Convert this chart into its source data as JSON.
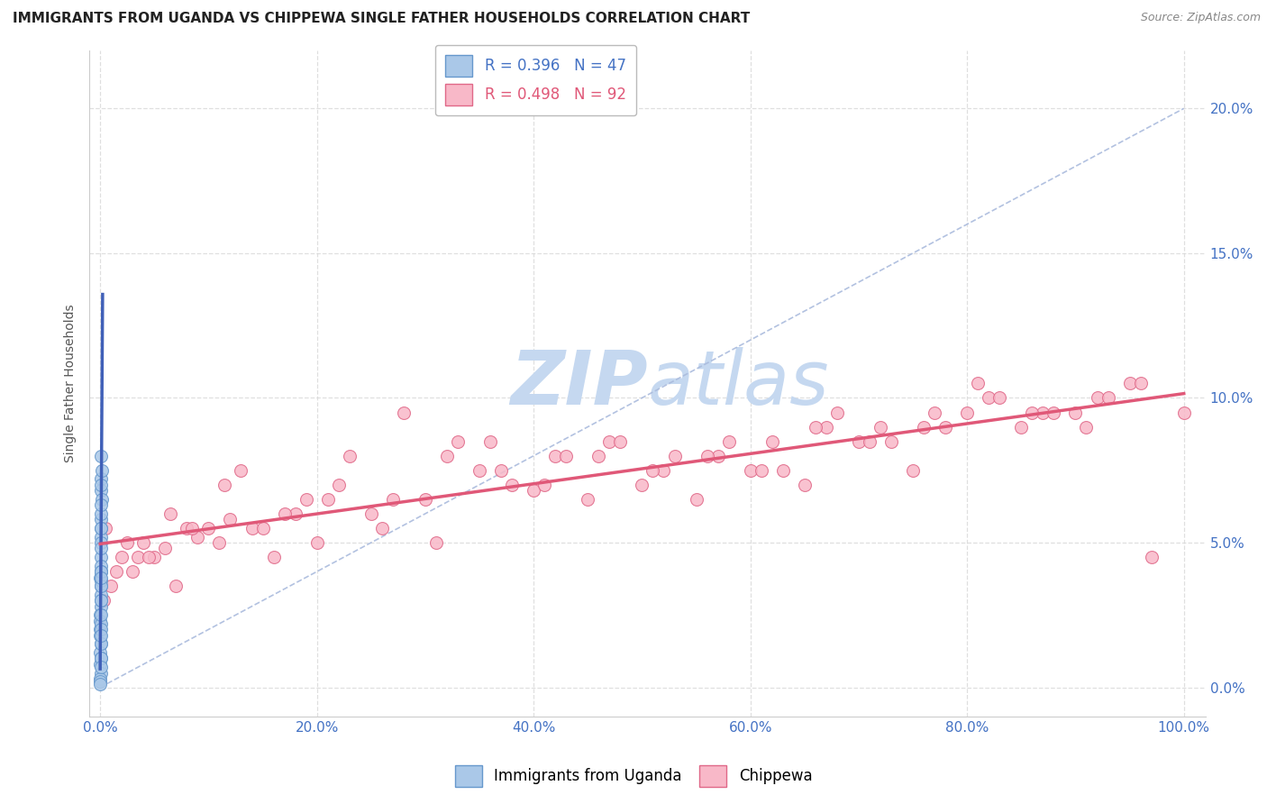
{
  "title": "IMMIGRANTS FROM UGANDA VS CHIPPEWA SINGLE FATHER HOUSEHOLDS CORRELATION CHART",
  "source": "Source: ZipAtlas.com",
  "ylabel": "Single Father Households",
  "x_tick_labels": [
    "0.0%",
    "20.0%",
    "40.0%",
    "60.0%",
    "80.0%",
    "100.0%"
  ],
  "x_tick_values": [
    0,
    20,
    40,
    60,
    80,
    100
  ],
  "y_tick_labels": [
    "0.0%",
    "5.0%",
    "10.0%",
    "15.0%",
    "20.0%"
  ],
  "y_tick_values": [
    0,
    5,
    10,
    15,
    20
  ],
  "xlim": [
    -1,
    102
  ],
  "ylim": [
    -1,
    22
  ],
  "legend_entries": [
    {
      "label": "R = 0.396   N = 47",
      "color": "#a8c4e0"
    },
    {
      "label": "R = 0.498   N = 92",
      "color": "#f4b0c0"
    }
  ],
  "uganda_x": [
    0.05,
    0.08,
    0.12,
    0.05,
    0.1,
    0.03,
    0.06,
    0.08,
    0.04,
    0.02,
    0.07,
    0.04,
    0.09,
    0.15,
    0.06,
    0.07,
    0.04,
    0.03,
    0.02,
    0.04,
    0.06,
    0.08,
    0.05,
    0.05,
    0.01,
    0.02,
    0.02,
    0.04,
    0.1,
    0.05,
    0.03,
    0.02,
    0.04,
    0.02,
    0.05,
    0.07,
    0.04,
    0.03,
    0.06,
    0.04,
    0.05,
    0.02,
    0.02,
    0.04,
    0.03,
    0.04,
    0.01
  ],
  "uganda_y": [
    7.2,
    6.8,
    6.5,
    5.8,
    7.0,
    6.0,
    5.5,
    4.5,
    4.0,
    3.8,
    5.2,
    3.5,
    6.3,
    7.5,
    5.0,
    4.8,
    3.2,
    2.8,
    2.5,
    4.2,
    3.0,
    5.5,
    4.0,
    3.7,
    2.0,
    2.3,
    1.8,
    2.2,
    8.0,
    3.5,
    1.5,
    1.2,
    3.0,
    0.8,
    2.0,
    4.0,
    2.5,
    1.0,
    3.8,
    1.5,
    0.5,
    0.3,
    0.2,
    1.0,
    0.7,
    1.8,
    0.1
  ],
  "chippewa_x": [
    0.5,
    2.0,
    4.0,
    6.0,
    9.0,
    12.0,
    16.0,
    20.0,
    25.0,
    30.0,
    35.0,
    40.0,
    45.0,
    50.0,
    55.0,
    60.0,
    65.0,
    70.0,
    75.0,
    80.0,
    85.0,
    90.0,
    95.0,
    100.0,
    1.0,
    3.0,
    5.0,
    8.0,
    11.0,
    14.0,
    18.0,
    22.0,
    27.0,
    32.0,
    37.0,
    42.0,
    47.0,
    52.0,
    57.0,
    62.0,
    67.0,
    72.0,
    77.0,
    82.0,
    87.0,
    92.0,
    97.0,
    1.5,
    3.5,
    7.0,
    10.0,
    13.0,
    17.0,
    21.0,
    26.0,
    31.0,
    36.0,
    41.0,
    46.0,
    51.0,
    56.0,
    61.0,
    66.0,
    71.0,
    76.0,
    81.0,
    86.0,
    91.0,
    96.0,
    0.3,
    2.5,
    4.5,
    6.5,
    8.5,
    11.5,
    15.0,
    19.0,
    23.0,
    28.0,
    33.0,
    38.0,
    43.0,
    48.0,
    53.0,
    58.0,
    63.0,
    68.0,
    73.0,
    78.0,
    83.0,
    88.0,
    93.0
  ],
  "chippewa_y": [
    5.5,
    4.5,
    5.0,
    4.8,
    5.2,
    5.8,
    4.5,
    5.0,
    6.0,
    6.5,
    7.5,
    6.8,
    6.5,
    7.0,
    6.5,
    7.5,
    7.0,
    8.5,
    7.5,
    9.5,
    9.0,
    9.5,
    10.5,
    9.5,
    3.5,
    4.0,
    4.5,
    5.5,
    5.0,
    5.5,
    6.0,
    7.0,
    6.5,
    8.0,
    7.5,
    8.0,
    8.5,
    7.5,
    8.0,
    8.5,
    9.0,
    9.0,
    9.5,
    10.0,
    9.5,
    10.0,
    4.5,
    4.0,
    4.5,
    3.5,
    5.5,
    7.5,
    6.0,
    6.5,
    5.5,
    5.0,
    8.5,
    7.0,
    8.0,
    7.5,
    8.0,
    7.5,
    9.0,
    8.5,
    9.0,
    10.5,
    9.5,
    9.0,
    10.5,
    3.0,
    5.0,
    4.5,
    6.0,
    5.5,
    7.0,
    5.5,
    6.5,
    8.0,
    9.5,
    8.5,
    7.0,
    8.0,
    8.5,
    8.0,
    8.5,
    7.5,
    9.5,
    8.5,
    9.0,
    10.0,
    9.5,
    10.0
  ],
  "watermark_zip": "ZIP",
  "watermark_atlas": "atlas",
  "watermark_color_zip": "#c5d8f0",
  "watermark_color_atlas": "#c5d8f0",
  "background_color": "#ffffff",
  "grid_color": "#d8d8d8",
  "title_fontsize": 11,
  "axis_fontsize": 10,
  "tick_fontsize": 11,
  "source_fontsize": 9,
  "marker_size": 100,
  "uganda_marker_color": "#aac8e8",
  "uganda_edge_color": "#6698cc",
  "uganda_line_color": "#4060b8",
  "chippewa_marker_color": "#f8b8c8",
  "chippewa_edge_color": "#e06888",
  "chippewa_line_color": "#e05878",
  "ref_line_color": "#aabbdd"
}
